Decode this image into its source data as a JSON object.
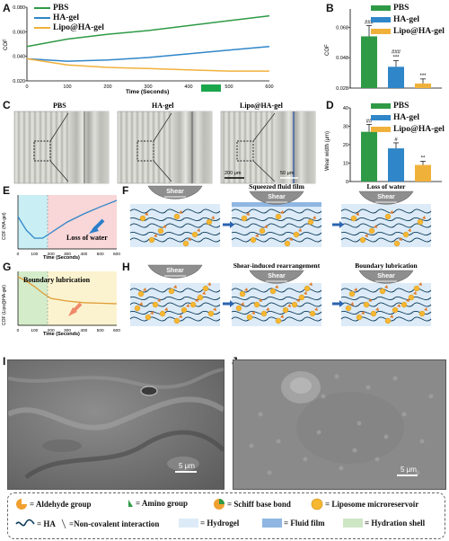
{
  "panels": {
    "A": "A",
    "B": "B",
    "C": "C",
    "D": "D",
    "E": "E",
    "F": "F",
    "G": "G",
    "H": "H",
    "I": "I",
    "J": "J"
  },
  "legend": {
    "pbs": "PBS",
    "ha": "HA-gel",
    "lipo": "Lipo@HA-gel"
  },
  "colors": {
    "pbs": "#2e9a46",
    "ha": "#2f86c8",
    "lipo": "#f0b13b"
  },
  "chartA": {
    "ylabel": "COF",
    "xlabel": "Time (Seconds)",
    "yticks": [
      "0.020",
      "0.040",
      "0.060",
      "0.080"
    ],
    "xticks": [
      "0",
      "100",
      "200",
      "300",
      "400",
      "500",
      "600"
    ]
  },
  "chartB": {
    "ylabel": "COF",
    "yticks": [
      "0.028",
      "0.048",
      "0.068"
    ],
    "sig": [
      "###",
      "###\n***",
      "***"
    ]
  },
  "panelC": {
    "titles": [
      "PBS",
      "HA-gel",
      "Lipo@HA-gel"
    ],
    "scale1": "200 μm",
    "scale2": "50 μm"
  },
  "chartD": {
    "ylabel": "Wear width (μm)",
    "yticks": [
      "0",
      "10",
      "20",
      "30",
      "40"
    ],
    "sig": [
      "##",
      "#",
      "**"
    ]
  },
  "chartE": {
    "ylabel": "COF (HA-gel)",
    "xlabel": "Time (Seconds)",
    "xticks": [
      "0",
      "100",
      "200",
      "300",
      "400",
      "500",
      "600"
    ],
    "annot": "Loss of water"
  },
  "chartG": {
    "ylabel": "COF (Lipo@HA-gel)",
    "xlabel": "Time (Seconds)",
    "xticks": [
      "0",
      "100",
      "200",
      "300",
      "400",
      "500",
      "600"
    ],
    "annot": "Boundary lubrication"
  },
  "panelF": {
    "shear": "Shear",
    "sub2": "Squeezed fluid film",
    "sub3": "Loss of water"
  },
  "panelH": {
    "shear": "Shear",
    "sub2": "Shear-induced rearrangement",
    "sub3": "Boundary lubrication"
  },
  "sem": {
    "scaleI": "5 μm",
    "scaleJ": "5 μm"
  },
  "key": {
    "aldehyde": "= Aldehyde group",
    "amino": "= Amino group",
    "schiff": "= Schiff base bond",
    "liposome": "= Liposome microreservoir",
    "ha": "= HA",
    "noncov": "=Non-covalent interaction",
    "hydrogel": "= Hydrogel",
    "fluid": "= Fluid film",
    "hydration": "= Hydration shell"
  },
  "chart_data": [
    {
      "type": "line",
      "x": [
        0,
        100,
        200,
        300,
        400,
        500,
        600
      ],
      "series": [
        {
          "name": "PBS",
          "values": [
            0.048,
            0.054,
            0.058,
            0.061,
            0.065,
            0.069,
            0.073
          ]
        },
        {
          "name": "HA-gel",
          "values": [
            0.038,
            0.036,
            0.037,
            0.039,
            0.042,
            0.045,
            0.048
          ]
        },
        {
          "name": "Lipo@HA-gel",
          "values": [
            0.038,
            0.033,
            0.031,
            0.03,
            0.029,
            0.028,
            0.028
          ]
        }
      ],
      "xlabel": "Time (Seconds)",
      "ylabel": "COF",
      "ylim": [
        0.02,
        0.08
      ],
      "xlim": [
        0,
        600
      ]
    },
    {
      "type": "bar",
      "categories": [
        "PBS",
        "HA-gel",
        "Lipo@HA-gel"
      ],
      "values": [
        0.062,
        0.042,
        0.031
      ],
      "errors": [
        0.007,
        0.004,
        0.003
      ],
      "ylabel": "COF",
      "ylim": [
        0.028,
        0.08
      ]
    },
    {
      "type": "bar",
      "categories": [
        "PBS",
        "HA-gel",
        "Lipo@HA-gel"
      ],
      "values": [
        27,
        18,
        9
      ],
      "errors": [
        4,
        3,
        2
      ],
      "ylabel": "Wear width (μm)",
      "ylim": [
        0,
        40
      ]
    },
    {
      "type": "line",
      "x": [
        0,
        50,
        100,
        150,
        200,
        300,
        400,
        500,
        600
      ],
      "values": [
        0.6,
        0.35,
        0.2,
        0.2,
        0.3,
        0.5,
        0.65,
        0.78,
        0.9
      ],
      "xlabel": "Time (Seconds)",
      "ylabel": "COF (HA-gel)"
    },
    {
      "type": "line",
      "x": [
        0,
        50,
        100,
        150,
        200,
        300,
        400,
        500,
        600
      ],
      "values": [
        0.9,
        0.82,
        0.72,
        0.6,
        0.5,
        0.45,
        0.42,
        0.41,
        0.4
      ],
      "xlabel": "Time (Seconds)",
      "ylabel": "COF (Lipo@HA-gel)"
    }
  ]
}
